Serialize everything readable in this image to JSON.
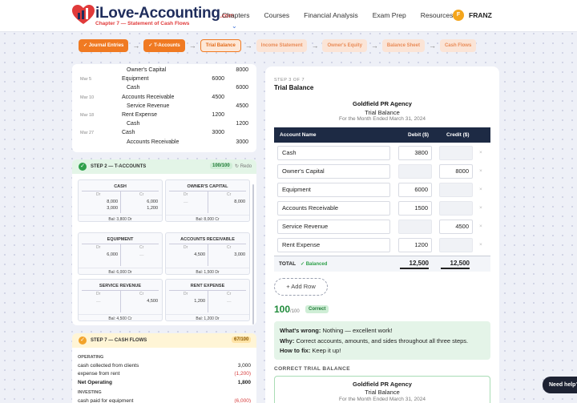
{
  "brand": {
    "name": "iLove-Accounting",
    "tld": ".com",
    "subtitle": "Chapter 7 — Statement of Cash Flows"
  },
  "nav": {
    "links": [
      "Chapters",
      "Courses",
      "Financial Analysis",
      "Exam Prep",
      "Resources"
    ],
    "user_initial": "F",
    "user_name": "FRANZ"
  },
  "stepper": [
    {
      "label": "Journal Entries",
      "state": "done"
    },
    {
      "label": "T-Accounts",
      "state": "done"
    },
    {
      "label": "Trial Balance",
      "state": "current"
    },
    {
      "label": "Income Statement",
      "state": "future"
    },
    {
      "label": "Owner's Equity",
      "state": "future"
    },
    {
      "label": "Balance Sheet",
      "state": "future"
    },
    {
      "label": "Cash Flows",
      "state": "future"
    }
  ],
  "journal_rows": [
    {
      "date": "",
      "account": "Owner's Capital",
      "debit": "",
      "credit": "8000",
      "side": "cr"
    },
    {
      "date": "Mar 5",
      "account": "Equipment",
      "debit": "6000",
      "credit": "",
      "side": "dr"
    },
    {
      "date": "",
      "account": "Cash",
      "debit": "",
      "credit": "6000",
      "side": "cr"
    },
    {
      "date": "Mar 10",
      "account": "Accounts Receivable",
      "debit": "4500",
      "credit": "",
      "side": "dr"
    },
    {
      "date": "",
      "account": "Service Revenue",
      "debit": "",
      "credit": "4500",
      "side": "cr"
    },
    {
      "date": "Mar 18",
      "account": "Rent Expense",
      "debit": "1200",
      "credit": "",
      "side": "dr"
    },
    {
      "date": "",
      "account": "Cash",
      "debit": "",
      "credit": "1200",
      "side": "cr"
    },
    {
      "date": "Mar 27",
      "account": "Cash",
      "debit": "3000",
      "credit": "",
      "side": "dr"
    },
    {
      "date": "",
      "account": "Accounts Receivable",
      "debit": "",
      "credit": "3000",
      "side": "cr"
    }
  ],
  "taccounts_section": {
    "title": "STEP 2 — T-ACCOUNTS",
    "score": "100/100",
    "redo": "↻ Redo",
    "dr_label": "Dr",
    "cr_label": "Cr",
    "dash": "—",
    "accounts": [
      {
        "name": "CASH",
        "dr": [
          "8,000",
          "3,000"
        ],
        "cr": [
          "6,000",
          "1,200"
        ],
        "balance": "Bal: 3,800 Dr"
      },
      {
        "name": "OWNER'S CAPITAL",
        "dr": [],
        "cr": [
          "8,000"
        ],
        "balance": "Bal: 8,000 Cr"
      },
      {
        "name": "EQUIPMENT",
        "dr": [
          "6,000"
        ],
        "cr": [],
        "balance": "Bal: 6,000 Dr"
      },
      {
        "name": "ACCOUNTS RECEIVABLE",
        "dr": [
          "4,500"
        ],
        "cr": [
          "3,000"
        ],
        "balance": "Bal: 1,500 Dr"
      },
      {
        "name": "SERVICE REVENUE",
        "dr": [],
        "cr": [
          "4,500"
        ],
        "balance": "Bal: 4,500 Cr"
      },
      {
        "name": "RENT EXPENSE",
        "dr": [
          "1,200"
        ],
        "cr": [],
        "balance": "Bal: 1,200 Dr"
      }
    ]
  },
  "cashflows_section": {
    "title": "STEP 7 — CASH FLOWS",
    "score": "67/100",
    "rows": [
      {
        "label": "OPERATING",
        "value": "",
        "kind": "hdr"
      },
      {
        "label": "cash collected from clients",
        "value": "3,000",
        "kind": "row"
      },
      {
        "label": "expense from rent",
        "value": "(1,200)",
        "kind": "neg"
      },
      {
        "label": "Net Operating",
        "value": "1,800",
        "kind": "bold"
      },
      {
        "label": "INVESTING",
        "value": "",
        "kind": "hdr"
      },
      {
        "label": "cash paid for equipment",
        "value": "(6,000)",
        "kind": "neg"
      }
    ]
  },
  "panel": {
    "step_label": "STEP 3 OF 7",
    "title": "Trial Balance",
    "company": "Goldfield PR Agency",
    "report": "Trial Balance",
    "date": "For the Month Ended March 31, 2024",
    "col_account": "Account Name",
    "col_debit": "Debit ($)",
    "col_credit": "Credit ($)",
    "rows": [
      {
        "account": "Cash",
        "debit": "3800",
        "credit": ""
      },
      {
        "account": "Owner's Capital",
        "debit": "",
        "credit": "8000"
      },
      {
        "account": "Equipment",
        "debit": "6000",
        "credit": ""
      },
      {
        "account": "Accounts Receivable",
        "debit": "1500",
        "credit": ""
      },
      {
        "account": "Service Revenue",
        "debit": "",
        "credit": "4500"
      },
      {
        "account": "Rent Expense",
        "debit": "1200",
        "credit": ""
      }
    ],
    "remove_symbol": "×",
    "total_label": "TOTAL",
    "balanced_label": "✓ Balanced",
    "total_debit": "12,500",
    "total_credit": "12,500",
    "add_row": "+ Add Row",
    "score": "100",
    "score_max": "/100",
    "score_badge": "Correct",
    "feedback": {
      "wrong_label": "What's wrong:",
      "wrong_text": "Nothing — excellent work!",
      "why_label": "Why:",
      "why_text": "Correct accounts, amounts, and sides throughout all three steps.",
      "fix_label": "How to fix:",
      "fix_text": "Keep it up!"
    },
    "correct_tb_label": "CORRECT TRIAL BALANCE",
    "correct_tb": {
      "company": "Goldfield PR Agency",
      "report": "Trial Balance",
      "date": "For the Month Ended March 31, 2024"
    }
  },
  "help": "Need help?"
}
